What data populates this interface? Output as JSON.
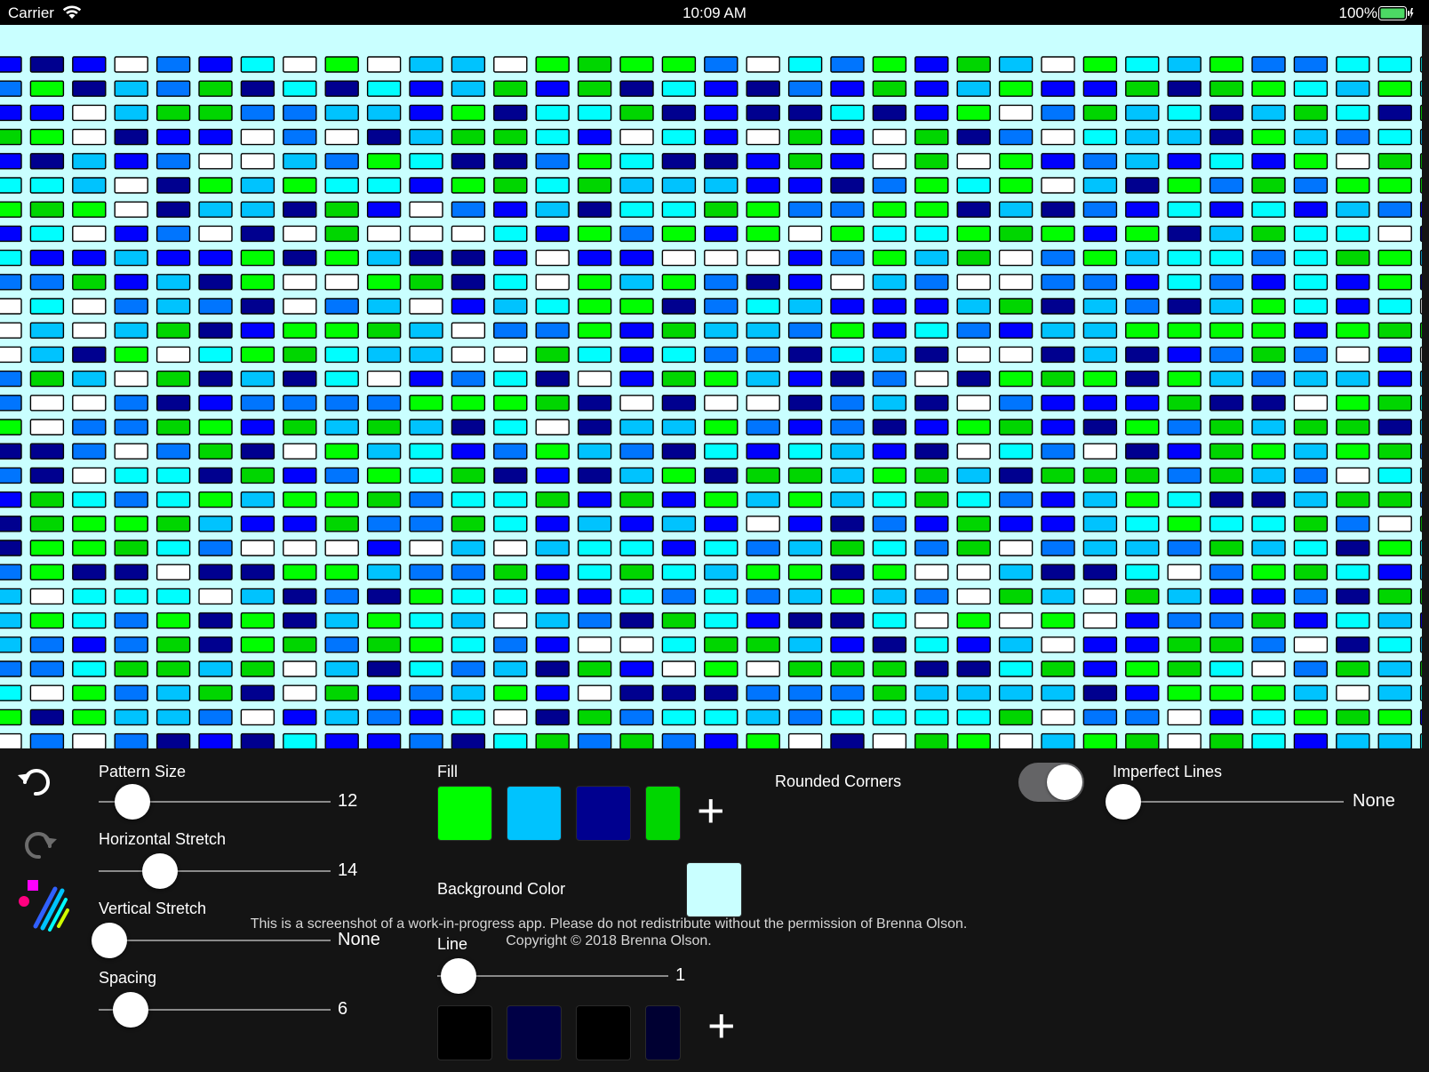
{
  "status_bar": {
    "carrier": "Carrier",
    "time": "10:09 AM",
    "battery": "100%"
  },
  "toolbar": {
    "undo_icon": "undo-icon",
    "redo_icon": "redo-icon",
    "app_logo_icon": "app-logo-icon"
  },
  "pattern_size": {
    "label": "Pattern Size",
    "value": "12",
    "level": 0.11
  },
  "horizontal_stretch": {
    "label": "Horizontal Stretch",
    "value": "14",
    "level": 0.24
  },
  "vertical_stretch": {
    "label": "Vertical Stretch",
    "value": "None",
    "level": 0.0
  },
  "spacing": {
    "label": "Spacing",
    "value": "6",
    "level": 0.1
  },
  "fill": {
    "label": "Fill",
    "swatches": [
      "#00fe00",
      "#00c3fe",
      "#00008f",
      "#00d600"
    ]
  },
  "background_color": {
    "label": "Background Color",
    "color": "#c9ffff"
  },
  "line": {
    "label": "Line",
    "value": "1",
    "level": 0.05,
    "swatches": [
      "#000000",
      "#000046",
      "#000000",
      "#000032"
    ]
  },
  "rounded_corners": {
    "label": "Rounded Corners",
    "on": true
  },
  "imperfect_lines": {
    "label": "Imperfect Lines",
    "value": "None",
    "level": 0.0
  },
  "watermark": {
    "line1": "This is a screenshot of a work-in-progress app. Please do not redistribute without the permission of Brenna Olson.",
    "line2": "Copyright © 2018 Brenna Olson."
  },
  "pattern": {
    "background": "#c9ffff",
    "palette": [
      "#00fe00",
      "#00c3fe",
      "#00008f",
      "#00d600",
      "#0000fe",
      "#0075fe",
      "#00fefe",
      "#ffffff"
    ],
    "tile_stroke": "#000000"
  }
}
